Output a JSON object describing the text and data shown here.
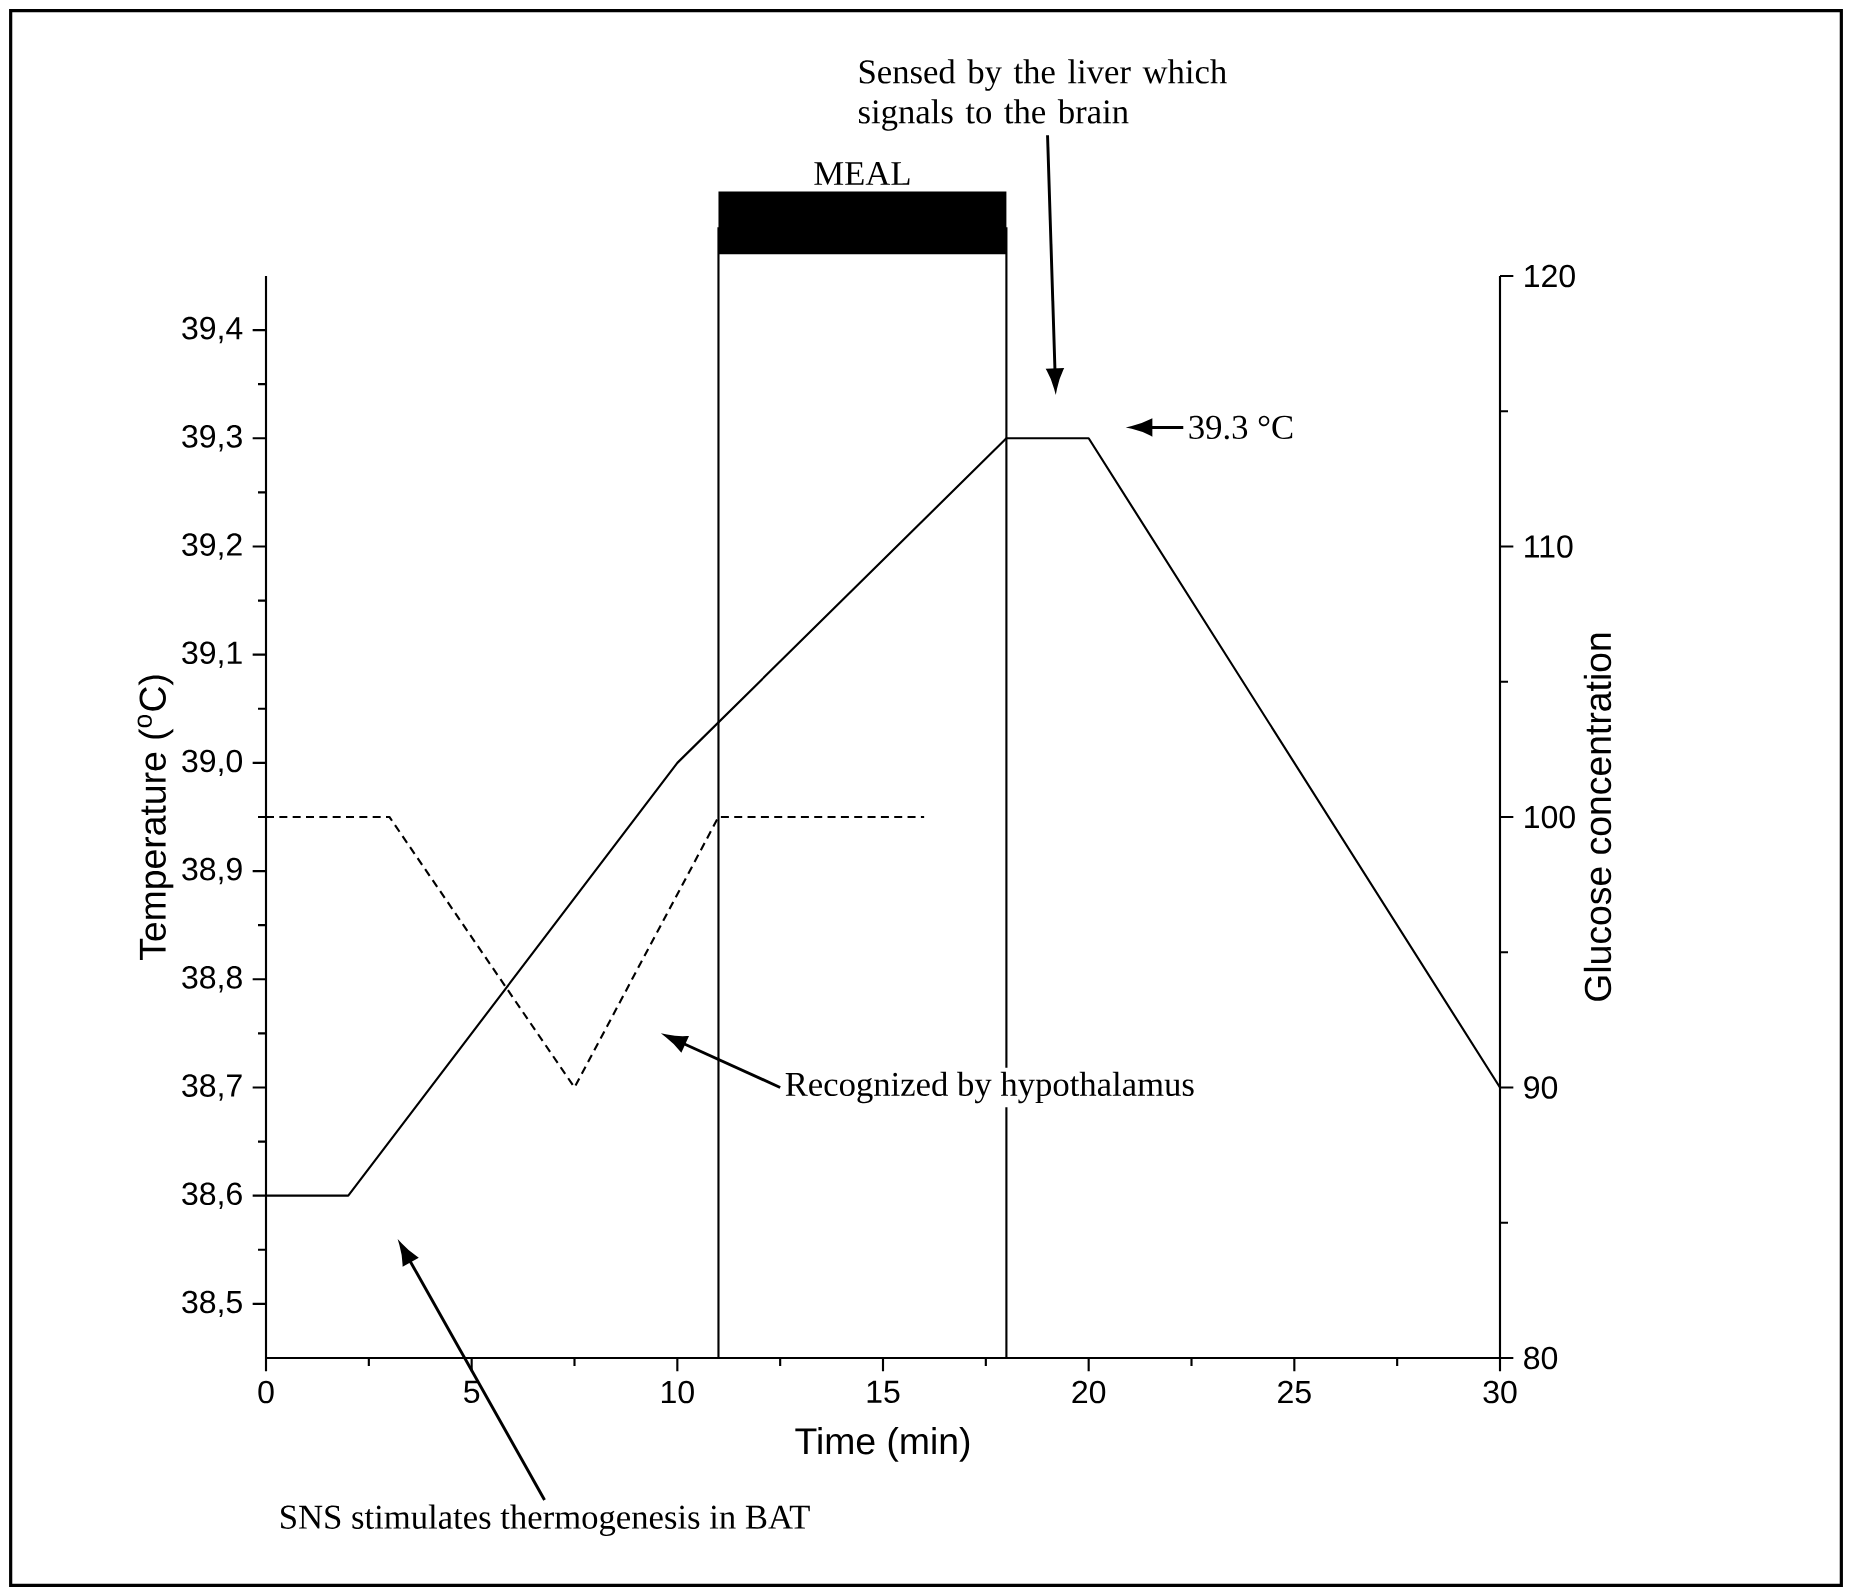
{
  "chart_data": {
    "type": "line",
    "xlabel": "Time (min)",
    "ylabel": "Temperature ($^{o}$C)",
    "y2label": "Glucose concentration",
    "xlim": [
      0,
      30
    ],
    "xticks": [
      0,
      5,
      10,
      15,
      20,
      25,
      30
    ],
    "ylim": [
      38.45,
      39.45
    ],
    "yticks": [
      {
        "value": 38.5,
        "label": "38,5"
      },
      {
        "value": 38.6,
        "label": "38,6"
      },
      {
        "value": 38.7,
        "label": "38,7"
      },
      {
        "value": 38.8,
        "label": "38,8"
      },
      {
        "value": 38.9,
        "label": "38,9"
      },
      {
        "value": 39.0,
        "label": "39,0"
      },
      {
        "value": 39.1,
        "label": "39,1"
      },
      {
        "value": 39.2,
        "label": "39,2"
      },
      {
        "value": 39.3,
        "label": "39,3"
      },
      {
        "value": 39.4,
        "label": "39,4"
      }
    ],
    "y2lim": [
      80,
      120
    ],
    "y2ticks": [
      80,
      90,
      100,
      110,
      120
    ],
    "series": [
      {
        "x": [
          0,
          2,
          10,
          18,
          20,
          30
        ],
        "values": [
          38.6,
          38.6,
          39.0,
          39.3,
          39.3,
          38.7
        ],
        "color": "#000000",
        "line_style": "solid"
      },
      {
        "x": [
          0,
          3,
          7.5,
          11,
          16
        ],
        "values": [
          100,
          100,
          90,
          100,
          100
        ],
        "axis": "y2",
        "color": "#000000",
        "line_style": "dashed"
      }
    ],
    "ref_lines": [
      {
        "axis": "x",
        "value": 11,
        "color": "#000000"
      },
      {
        "axis": "x",
        "value": 18,
        "color": "#000000"
      }
    ],
    "annotations": [
      "MEAL",
      "Sensed by the liver which signals to the brain",
      "39.3 °C",
      "Recognized by hypothalamus",
      "SNS stimulates thermogenesis in BAT"
    ],
    "grid": false,
    "marker": "none"
  }
}
